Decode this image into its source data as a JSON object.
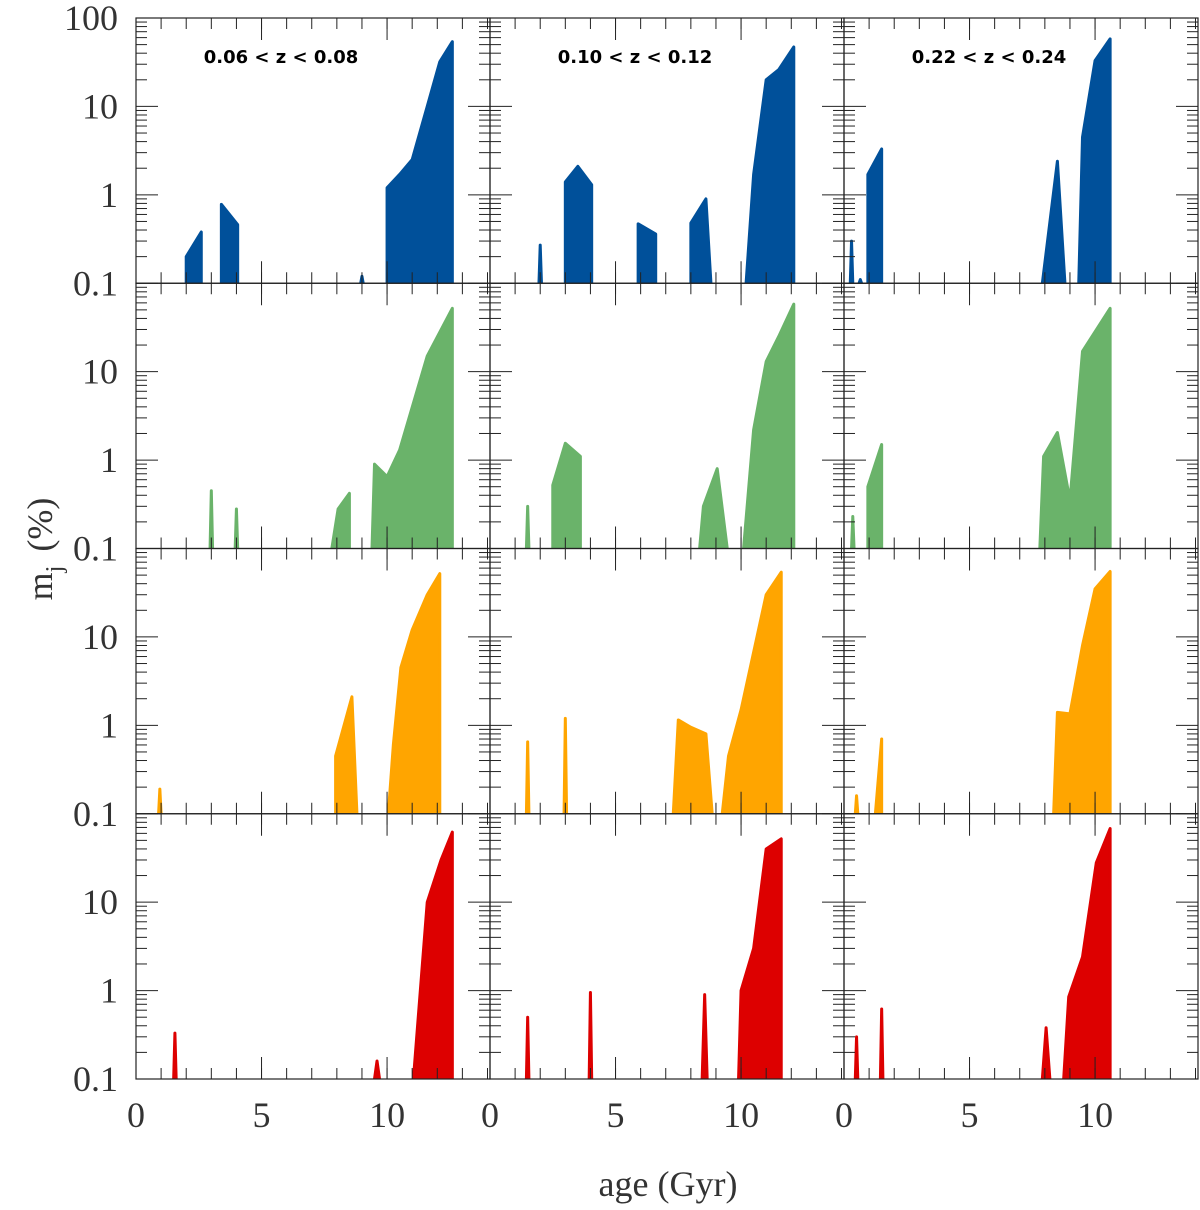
{
  "figure": {
    "xlabel": "age (Gyr)",
    "ylabel": [
      "m",
      "j",
      "(%)"
    ]
  },
  "chart_data": [
    {
      "type": "area",
      "title": "0.06 < z < 0.08",
      "color": "#00509a",
      "log_y": true,
      "xlim": [
        0,
        14.1
      ],
      "ylim": [
        0.1,
        100
      ],
      "xticks": [
        0,
        5,
        10
      ],
      "yticks": [
        0.1,
        1,
        10,
        100
      ],
      "x": [
        2.0,
        2.0,
        2.6,
        2.6,
        null,
        3.4,
        3.4,
        4.05,
        4.05,
        null,
        8.95,
        9.0,
        9.05,
        null,
        10.0,
        10.0,
        10.5,
        11.0,
        11.6,
        12.1,
        12.6,
        12.6
      ],
      "values": [
        0.1,
        0.2,
        0.38,
        0.1,
        null,
        0.1,
        0.78,
        0.46,
        0.1,
        null,
        0.1,
        0.12,
        0.1,
        null,
        0.1,
        1.2,
        1.7,
        2.5,
        10,
        32,
        54,
        0.1
      ]
    },
    {
      "type": "area",
      "title": "0.10 < z < 0.12",
      "color": "#00509a",
      "log_y": true,
      "xlim": [
        0,
        14.1
      ],
      "ylim": [
        0.1,
        100
      ],
      "xticks": [
        0,
        5,
        10
      ],
      "yticks": [
        0.1,
        1,
        10,
        100
      ],
      "x": [
        1.95,
        2.0,
        2.05,
        null,
        3.0,
        3.0,
        3.5,
        4.05,
        4.05,
        null,
        5.9,
        5.9,
        6.6,
        6.6,
        null,
        8.0,
        8.0,
        8.6,
        8.8,
        null,
        10.2,
        10.5,
        11.0,
        11.5,
        12.1,
        12.1
      ],
      "values": [
        0.1,
        0.27,
        0.1,
        null,
        0.1,
        1.4,
        2.1,
        1.3,
        0.1,
        null,
        0.1,
        0.47,
        0.36,
        0.1,
        null,
        0.1,
        0.48,
        0.9,
        0.1,
        null,
        0.1,
        1.7,
        20,
        26,
        47,
        0.1
      ]
    },
    {
      "type": "area",
      "title": "0.22 < z < 0.24",
      "color": "#00509a",
      "log_y": true,
      "xlim": [
        0,
        14.1
      ],
      "ylim": [
        0.1,
        100
      ],
      "xticks": [
        0,
        5,
        10
      ],
      "yticks": [
        0.1,
        1,
        10,
        100
      ],
      "x": [
        0.25,
        0.3,
        0.35,
        null,
        0.6,
        0.65,
        0.7,
        null,
        0.95,
        0.95,
        1.5,
        1.5,
        null,
        7.9,
        8.5,
        8.8,
        null,
        9.35,
        9.5,
        10.0,
        10.6,
        10.6
      ],
      "values": [
        0.1,
        0.3,
        0.1,
        null,
        0.1,
        0.11,
        0.1,
        null,
        0.1,
        1.7,
        3.3,
        0.1,
        null,
        0.1,
        2.4,
        0.1,
        null,
        0.1,
        4.5,
        33,
        58,
        0.1
      ]
    },
    {
      "type": "area",
      "color": "#6ab36a",
      "log_y": true,
      "xlim": [
        0,
        14.1
      ],
      "ylim": [
        0.1,
        100
      ],
      "xticks": [
        0,
        5,
        10
      ],
      "yticks": [
        0.1,
        1,
        10
      ],
      "x": [
        2.95,
        3.0,
        3.05,
        null,
        3.95,
        4.0,
        4.05,
        null,
        7.8,
        8.05,
        8.5,
        8.5,
        null,
        9.4,
        9.5,
        10.0,
        10.5,
        11.6,
        12.6,
        12.6
      ],
      "values": [
        0.1,
        0.45,
        0.1,
        null,
        0.1,
        0.28,
        0.1,
        null,
        0.1,
        0.28,
        0.42,
        0.1,
        null,
        0.1,
        0.9,
        0.65,
        1.3,
        15,
        52,
        0.1
      ]
    },
    {
      "type": "area",
      "color": "#6ab36a",
      "log_y": true,
      "xlim": [
        0,
        14.1
      ],
      "ylim": [
        0.1,
        100
      ],
      "xticks": [
        0,
        5,
        10
      ],
      "yticks": [
        0.1,
        1,
        10
      ],
      "x": [
        1.45,
        1.5,
        1.55,
        null,
        2.5,
        2.5,
        3.0,
        3.6,
        3.6,
        null,
        8.35,
        8.5,
        9.05,
        9.45,
        null,
        10.1,
        10.5,
        11.0,
        11.5,
        12.1,
        12.1
      ],
      "values": [
        0.1,
        0.3,
        0.1,
        null,
        0.1,
        0.52,
        1.55,
        1.1,
        0.1,
        null,
        0.1,
        0.3,
        0.8,
        0.1,
        null,
        0.1,
        2.2,
        13,
        25,
        58,
        0.1
      ]
    },
    {
      "type": "area",
      "color": "#6ab36a",
      "log_y": true,
      "xlim": [
        0,
        14.1
      ],
      "ylim": [
        0.1,
        100
      ],
      "xticks": [
        0,
        5,
        10
      ],
      "yticks": [
        0.1,
        1,
        10
      ],
      "x": [
        0.3,
        0.35,
        0.4,
        null,
        0.95,
        0.95,
        1.5,
        1.5,
        null,
        7.8,
        7.95,
        8.5,
        9.0,
        9.5,
        10.6,
        10.6
      ],
      "values": [
        0.1,
        0.23,
        0.1,
        null,
        0.1,
        0.5,
        1.5,
        0.1,
        null,
        0.1,
        1.1,
        2.05,
        0.35,
        17,
        52,
        0.1
      ]
    },
    {
      "type": "area",
      "color": "#ffa500",
      "log_y": true,
      "xlim": [
        0,
        14.1
      ],
      "ylim": [
        0.1,
        100
      ],
      "xticks": [
        0,
        5,
        10
      ],
      "yticks": [
        0.1,
        1,
        10
      ],
      "x": [
        0.9,
        0.95,
        1.0,
        null,
        7.95,
        7.95,
        8.6,
        8.8,
        null,
        10.05,
        10.25,
        10.55,
        11.0,
        11.6,
        12.1,
        12.1
      ],
      "values": [
        0.1,
        0.19,
        0.1,
        null,
        0.1,
        0.45,
        2.1,
        0.1,
        null,
        0.1,
        0.6,
        4.5,
        12,
        30,
        52,
        0.1
      ]
    },
    {
      "type": "area",
      "color": "#ffa500",
      "log_y": true,
      "xlim": [
        0,
        14.1
      ],
      "ylim": [
        0.1,
        100
      ],
      "xticks": [
        0,
        5,
        10
      ],
      "yticks": [
        0.1,
        1,
        10
      ],
      "x": [
        1.45,
        1.5,
        1.55,
        null,
        2.95,
        3.0,
        3.05,
        null,
        7.3,
        7.5,
        8.0,
        8.6,
        8.85,
        null,
        9.25,
        9.5,
        10.0,
        11.0,
        11.6,
        11.6
      ],
      "values": [
        0.1,
        0.65,
        0.1,
        null,
        0.1,
        1.2,
        0.1,
        null,
        0.1,
        1.15,
        0.95,
        0.8,
        0.1,
        null,
        0.1,
        0.45,
        1.5,
        30,
        54,
        0.1
      ]
    },
    {
      "type": "area",
      "color": "#ffa500",
      "log_y": true,
      "xlim": [
        0,
        14.1
      ],
      "ylim": [
        0.1,
        100
      ],
      "xticks": [
        0,
        5,
        10
      ],
      "yticks": [
        0.1,
        1,
        10
      ],
      "x": [
        0.45,
        0.5,
        0.55,
        null,
        1.25,
        1.5,
        1.5,
        null,
        8.35,
        8.5,
        9.0,
        9.5,
        10.0,
        10.6,
        10.6
      ],
      "values": [
        0.1,
        0.16,
        0.1,
        null,
        0.1,
        0.7,
        0.1,
        null,
        0.1,
        1.4,
        1.35,
        8,
        35,
        55,
        0.1
      ]
    },
    {
      "type": "area",
      "color": "#dd0000",
      "log_y": true,
      "xlim": [
        0,
        14.1
      ],
      "ylim": [
        0.1,
        100
      ],
      "xticks": [
        0,
        5,
        10
      ],
      "yticks": [
        0.1,
        1,
        10
      ],
      "x": [
        1.5,
        1.55,
        1.6,
        null,
        9.5,
        9.6,
        9.7,
        null,
        11.05,
        11.6,
        12.15,
        12.6,
        12.6
      ],
      "values": [
        0.1,
        0.33,
        0.1,
        null,
        0.1,
        0.16,
        0.1,
        null,
        0.1,
        10,
        30,
        62,
        0.1
      ]
    },
    {
      "type": "area",
      "color": "#dd0000",
      "log_y": true,
      "xlim": [
        0,
        14.1
      ],
      "ylim": [
        0.1,
        100
      ],
      "xticks": [
        0,
        5,
        10
      ],
      "yticks": [
        0.1,
        1,
        10
      ],
      "x": [
        1.45,
        1.5,
        1.55,
        null,
        3.95,
        4.0,
        4.05,
        null,
        8.45,
        8.55,
        8.65,
        null,
        9.9,
        10.0,
        10.5,
        11.0,
        11.6,
        11.6
      ],
      "values": [
        0.1,
        0.5,
        0.1,
        null,
        0.1,
        0.95,
        0.1,
        null,
        0.1,
        0.9,
        0.1,
        null,
        0.1,
        1.0,
        3.0,
        40,
        52,
        0.1
      ]
    },
    {
      "type": "area",
      "color": "#dd0000",
      "log_y": true,
      "xlim": [
        0,
        14.1
      ],
      "ylim": [
        0.1,
        100
      ],
      "xticks": [
        0,
        5,
        10
      ],
      "yticks": [
        0.1,
        1,
        10
      ],
      "x": [
        0.45,
        0.5,
        0.55,
        null,
        1.45,
        1.5,
        1.55,
        null,
        7.9,
        8.05,
        8.2,
        null,
        8.75,
        8.95,
        9.5,
        10.05,
        10.6,
        10.6
      ],
      "values": [
        0.1,
        0.3,
        0.1,
        null,
        0.1,
        0.62,
        0.1,
        null,
        0.1,
        0.38,
        0.1,
        null,
        0.1,
        0.85,
        2.4,
        28,
        68,
        0.1
      ]
    }
  ]
}
